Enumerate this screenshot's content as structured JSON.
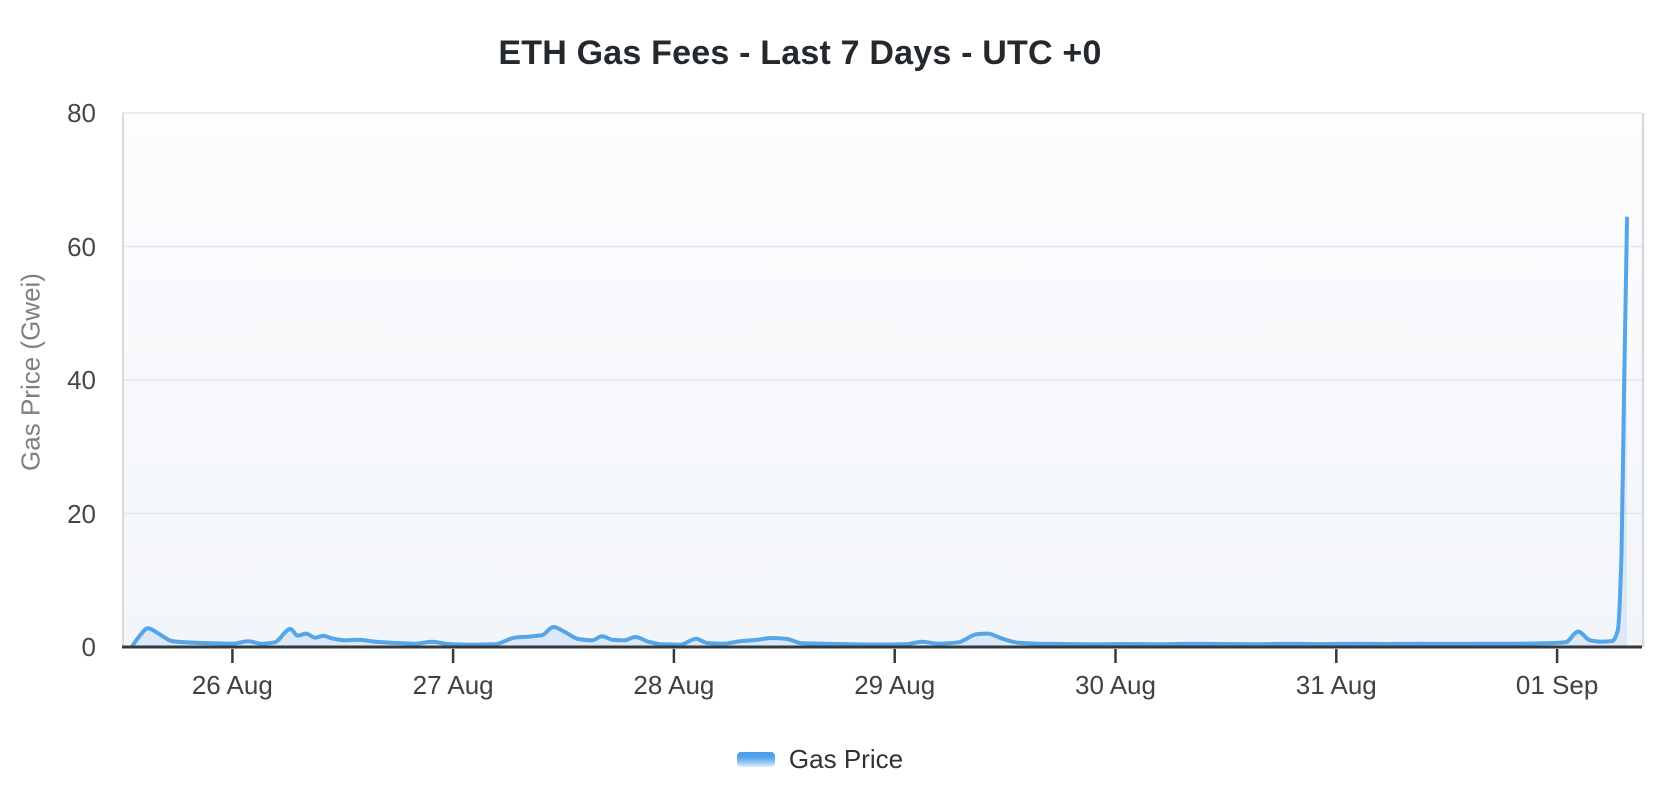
{
  "chart_data": {
    "type": "area",
    "title": "ETH Gas Fees - Last 7 Days - UTC +0",
    "xlabel": "",
    "ylabel": "Gas Price (Gwei)",
    "ylim": [
      0,
      80
    ],
    "y_ticks": [
      0,
      20,
      40,
      60,
      80
    ],
    "x_unit_hours_span": 162.4,
    "x_ticks": [
      {
        "t": 10.8,
        "label": "26 Aug"
      },
      {
        "t": 34.8,
        "label": "27 Aug"
      },
      {
        "t": 58.8,
        "label": "28 Aug"
      },
      {
        "t": 82.8,
        "label": "29 Aug"
      },
      {
        "t": 106.8,
        "label": "30 Aug"
      },
      {
        "t": 130.8,
        "label": "31 Aug"
      },
      {
        "t": 154.8,
        "label": "01 Sep"
      }
    ],
    "grid": "horizontal-only",
    "legend_position": "bottom",
    "series": [
      {
        "name": "Gas Price",
        "color": "#55a5e8",
        "fill_color": "rgba(100,170,235,0.16)",
        "points": [
          [
            0,
            0.3
          ],
          [
            0.8,
            1.8
          ],
          [
            1.6,
            2.8
          ],
          [
            2.9,
            1.9
          ],
          [
            4.2,
            0.9
          ],
          [
            5.7,
            0.7
          ],
          [
            8.4,
            0.55
          ],
          [
            10.8,
            0.5
          ],
          [
            12.5,
            0.85
          ],
          [
            14,
            0.5
          ],
          [
            15.4,
            0.7
          ],
          [
            17.1,
            2.7
          ],
          [
            17.9,
            1.7
          ],
          [
            18.8,
            2.0
          ],
          [
            19.8,
            1.4
          ],
          [
            20.7,
            1.7
          ],
          [
            21.6,
            1.3
          ],
          [
            23,
            1.0
          ],
          [
            24.5,
            1.1
          ],
          [
            26.3,
            0.8
          ],
          [
            28.5,
            0.6
          ],
          [
            30.7,
            0.5
          ],
          [
            32.5,
            0.8
          ],
          [
            34.2,
            0.45
          ],
          [
            36.6,
            0.35
          ],
          [
            39.3,
            0.4
          ],
          [
            41.5,
            1.4
          ],
          [
            42.9,
            1.55
          ],
          [
            44.5,
            1.8
          ],
          [
            45.7,
            3.0
          ],
          [
            47,
            2.2
          ],
          [
            48.4,
            1.2
          ],
          [
            49.9,
            1.0
          ],
          [
            51,
            1.6
          ],
          [
            52.1,
            1.1
          ],
          [
            53.4,
            1.0
          ],
          [
            54.6,
            1.5
          ],
          [
            56,
            0.8
          ],
          [
            57.5,
            0.4
          ],
          [
            59.5,
            0.35
          ],
          [
            61.2,
            1.25
          ],
          [
            62.4,
            0.6
          ],
          [
            64,
            0.5
          ],
          [
            66.2,
            0.9
          ],
          [
            67.9,
            1.1
          ],
          [
            69.5,
            1.35
          ],
          [
            71.1,
            1.2
          ],
          [
            72.7,
            0.55
          ],
          [
            75.2,
            0.5
          ],
          [
            77.9,
            0.42
          ],
          [
            81,
            0.38
          ],
          [
            83.9,
            0.4
          ],
          [
            85.8,
            0.8
          ],
          [
            87.5,
            0.5
          ],
          [
            89.7,
            0.7
          ],
          [
            91.7,
            1.9
          ],
          [
            92.9,
            2.0
          ],
          [
            94.5,
            1.25
          ],
          [
            96.2,
            0.65
          ],
          [
            98.6,
            0.5
          ],
          [
            101.3,
            0.45
          ],
          [
            104.6,
            0.4
          ],
          [
            107.8,
            0.45
          ],
          [
            111.4,
            0.4
          ],
          [
            114.9,
            0.5
          ],
          [
            118.4,
            0.45
          ],
          [
            122,
            0.4
          ],
          [
            125.5,
            0.48
          ],
          [
            129,
            0.44
          ],
          [
            132.5,
            0.5
          ],
          [
            136.1,
            0.45
          ],
          [
            139.7,
            0.5
          ],
          [
            143.2,
            0.46
          ],
          [
            146.7,
            0.5
          ],
          [
            150.2,
            0.5
          ],
          [
            153.5,
            0.55
          ],
          [
            155.7,
            0.7
          ],
          [
            157.1,
            2.3
          ],
          [
            158.4,
            1.0
          ],
          [
            159.7,
            0.8
          ],
          [
            160.8,
            0.9
          ],
          [
            161.4,
            2.5
          ],
          [
            161.8,
            14
          ],
          [
            162.1,
            40
          ],
          [
            162.4,
            64.2
          ]
        ]
      }
    ]
  },
  "colors": {
    "line": "#55a5e8",
    "axis": "#35383d",
    "gridline": "#e4e6ea",
    "plot_border_side": "#d7dade",
    "plot_bg_top": "#fcfdff",
    "plot_bg_bottom": "#f2f5f9",
    "title_text": "#24292e",
    "tick_text": "#3e4247",
    "axis_title_text": "#7b8087"
  }
}
